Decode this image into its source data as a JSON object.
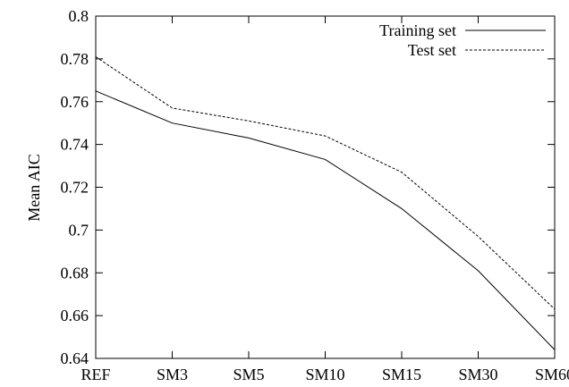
{
  "chart_data": {
    "type": "line",
    "title": "",
    "xlabel": "",
    "ylabel": "Mean AIC",
    "categories": [
      "REF",
      "SM3",
      "SM5",
      "SM10",
      "SM15",
      "SM30",
      "SM60"
    ],
    "ylim": [
      0.64,
      0.8
    ],
    "yticks": [
      "0.64",
      "0.66",
      "0.68",
      "0.7",
      "0.72",
      "0.74",
      "0.76",
      "0.78",
      "0.8"
    ],
    "grid": false,
    "legend_position": "top-right",
    "series": [
      {
        "name": "Training set",
        "style": "solid",
        "color": "#000000",
        "values": [
          0.765,
          0.75,
          0.743,
          0.733,
          0.71,
          0.681,
          0.644
        ]
      },
      {
        "name": "Test set",
        "style": "dashed",
        "color": "#000000",
        "values": [
          0.781,
          0.757,
          0.751,
          0.744,
          0.727,
          0.697,
          0.663
        ]
      }
    ]
  }
}
